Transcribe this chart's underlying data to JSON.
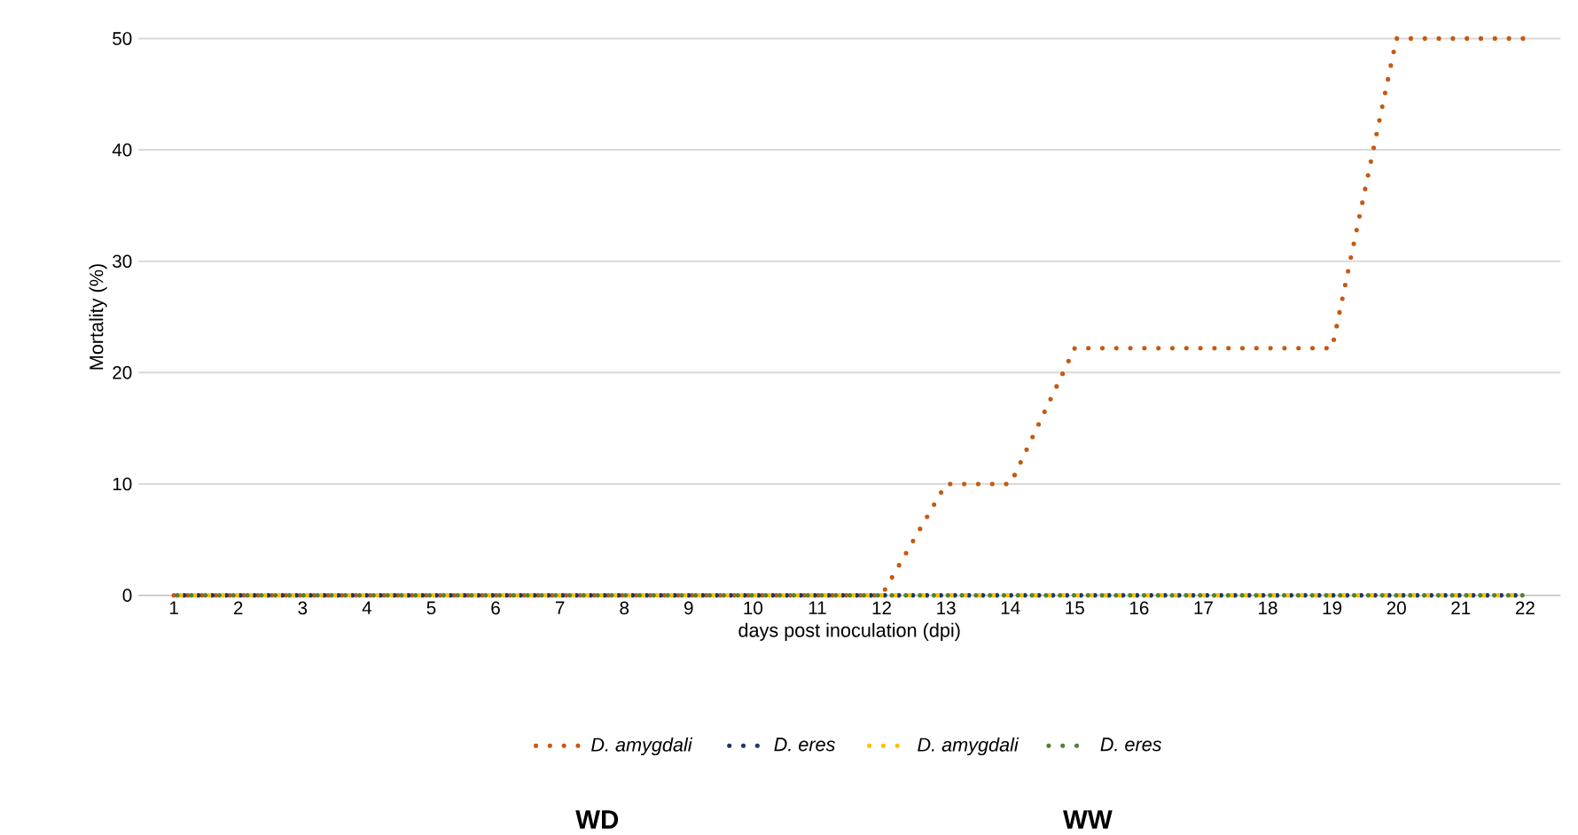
{
  "chart_data": {
    "type": "line",
    "xlabel": "days post inoculation (dpi)",
    "ylabel": "Mortality (%)",
    "categories": [
      "1",
      "2",
      "3",
      "4",
      "5",
      "6",
      "7",
      "8",
      "9",
      "10",
      "11",
      "12",
      "13",
      "14",
      "15",
      "16",
      "17",
      "18",
      "19",
      "20",
      "21",
      "22"
    ],
    "series": [
      {
        "name": "D. amygdali",
        "color": "#c55a11",
        "values": [
          0,
          0,
          0,
          0,
          0,
          0,
          0,
          0,
          0,
          0,
          0,
          0,
          10,
          10,
          22.2,
          22.2,
          22.2,
          22.2,
          22.2,
          50,
          50,
          50
        ]
      },
      {
        "name": "D. eres",
        "color": "#1f3864",
        "values": [
          0,
          0,
          0,
          0,
          0,
          0,
          0,
          0,
          0,
          0,
          0,
          0,
          0,
          0,
          0,
          0,
          0,
          0,
          0,
          0,
          0,
          0
        ]
      },
      {
        "name": "D. amygdali",
        "color": "#ffc000",
        "values": [
          0,
          0,
          0,
          0,
          0,
          0,
          0,
          0,
          0,
          0,
          0,
          0,
          0,
          0,
          0,
          0,
          0,
          0,
          0,
          0,
          0,
          0
        ]
      },
      {
        "name": "D. eres",
        "color": "#548235",
        "values": [
          0,
          0,
          0,
          0,
          0,
          0,
          0,
          0,
          0,
          0,
          0,
          0,
          0,
          0,
          0,
          0,
          0,
          0,
          0,
          0,
          0,
          0
        ]
      }
    ],
    "ylim": [
      0,
      50
    ],
    "yticks": [
      0,
      10,
      20,
      30,
      40,
      50
    ],
    "grid": "y",
    "legend": "bottom",
    "marker": "none",
    "line_style": "dotted",
    "annotations": [
      "WD",
      "WW"
    ]
  }
}
